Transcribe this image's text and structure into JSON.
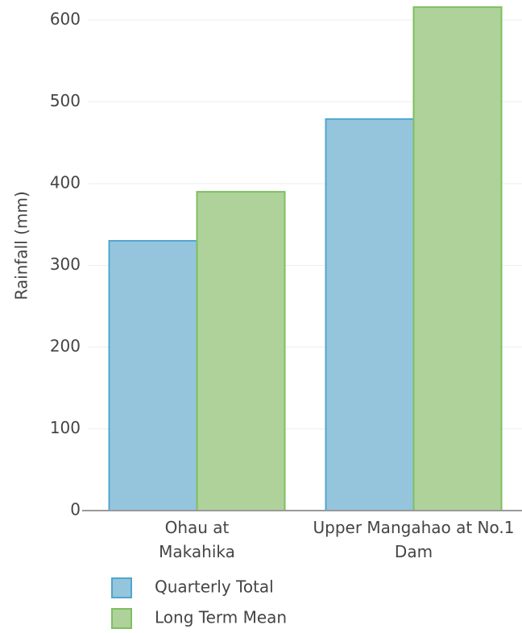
{
  "chart_data": {
    "type": "bar",
    "y_label": "Rainfall (mm)",
    "categories": [
      "Ohau at Makahika",
      "Upper Mangahao at No.1 Dam"
    ],
    "series": [
      {
        "name": "Quarterly Total",
        "color": "#95c5dd",
        "values": [
          330,
          479
        ]
      },
      {
        "name": "Long Term Mean",
        "color": "#afd29b",
        "values": [
          390,
          616
        ]
      }
    ],
    "ylim": [
      0,
      620
    ],
    "yticks": [
      0,
      100,
      200,
      300,
      400,
      500,
      600
    ],
    "grid": true,
    "legend": "bottom"
  }
}
